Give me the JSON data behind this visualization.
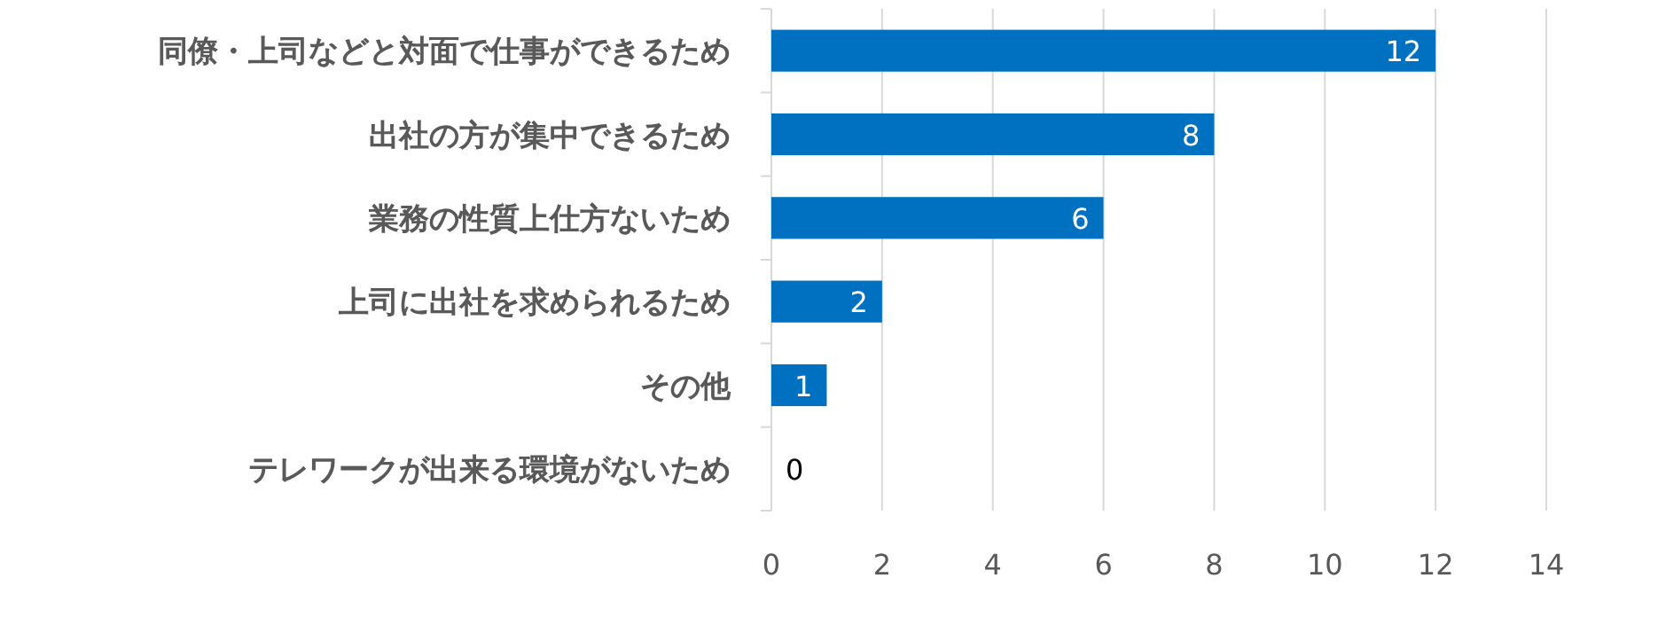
{
  "chart_data": {
    "type": "bar",
    "orientation": "horizontal",
    "categories": [
      "同僚・上司などと対面で仕事ができるため",
      "出社の方が集中できるため",
      "業務の性質上仕方ないため",
      "上司に出社を求められるため",
      "その他",
      "テレワークが出来る環境がないため"
    ],
    "values": [
      12,
      8,
      6,
      2,
      1,
      0
    ],
    "color": "#0070c0",
    "xlim": [
      0,
      14
    ],
    "xticks": [
      0,
      2,
      4,
      6,
      8,
      10,
      12,
      14
    ],
    "grid": "x",
    "data_labels": true
  }
}
